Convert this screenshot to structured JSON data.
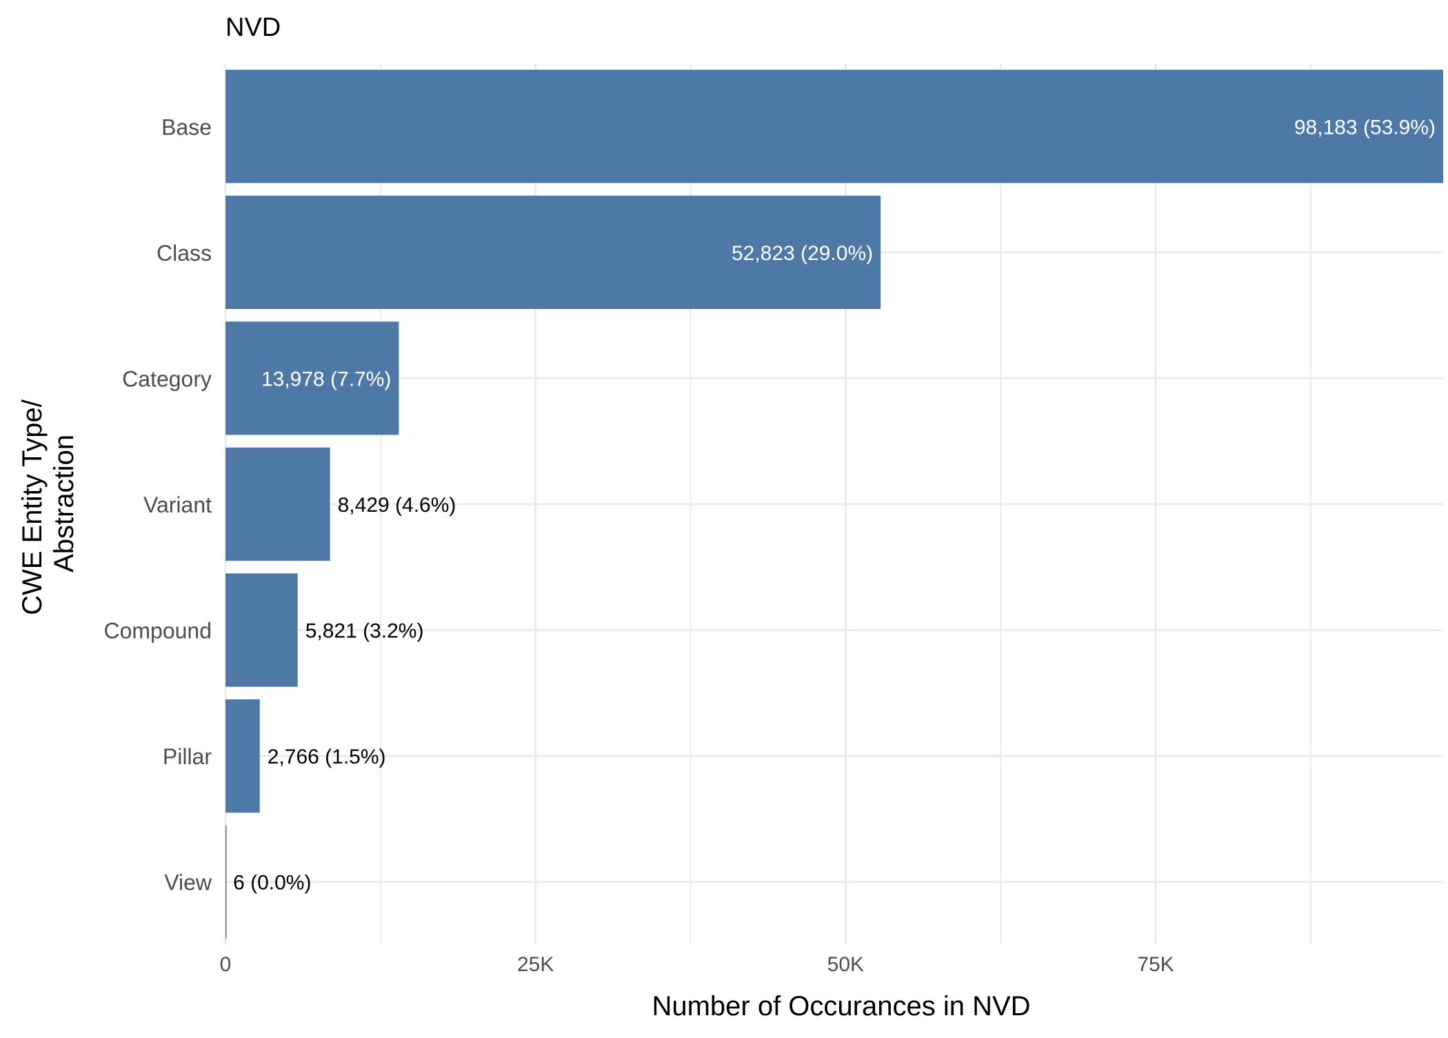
{
  "chart_data": {
    "type": "bar",
    "orientation": "horizontal",
    "title": "NVD",
    "xlabel": "Number of Occurances in NVD",
    "ylabel_lines": [
      "CWE Entity Type/",
      "Abstraction"
    ],
    "categories": [
      "Base",
      "Class",
      "Category",
      "Variant",
      "Compound",
      "Pillar",
      "View"
    ],
    "values": [
      98183,
      52823,
      13978,
      8429,
      5821,
      2766,
      6
    ],
    "data_labels": [
      "98,183 (53.9%)",
      "52,823 (29.0%)",
      "13,978 (7.7%)",
      "8,429 (4.6%)",
      "5,821 (3.2%)",
      "2,766 (1.5%)",
      "6 (0.0%)"
    ],
    "x_ticks": [
      {
        "value": 0,
        "label": "0"
      },
      {
        "value": 25000,
        "label": "25K"
      },
      {
        "value": 50000,
        "label": "50K"
      },
      {
        "value": 75000,
        "label": "75K"
      }
    ],
    "x_minor_ticks": [
      12500,
      37500,
      62500,
      87500
    ],
    "xlim": [
      0,
      98183
    ],
    "grid": true,
    "legend": "none",
    "colors": {
      "bar": "#4e79a7",
      "grid": "#ebebeb",
      "label_inside": "#ffffff",
      "label_outside": "#000000",
      "tick_text": "#4d4d4d",
      "axis_title": "#000000"
    }
  }
}
